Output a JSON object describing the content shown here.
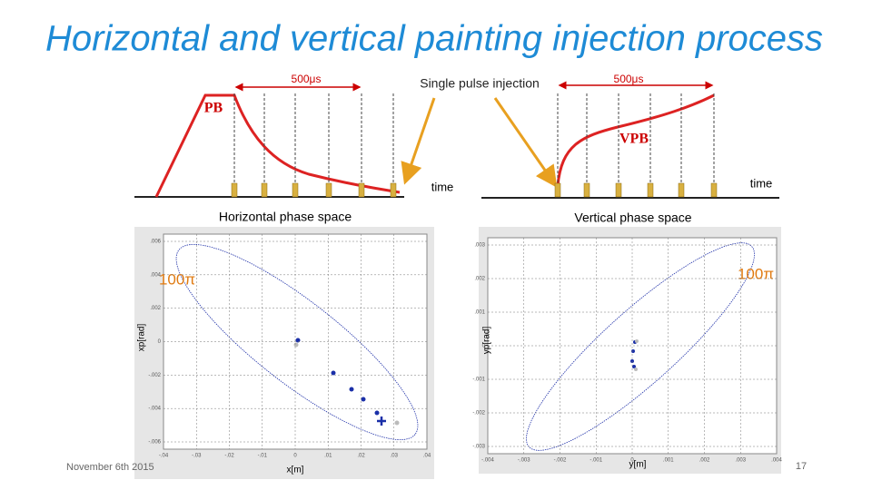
{
  "header": {
    "title": "Horizontal and vertical painting injection process"
  },
  "timing": {
    "left_interval": "500μs",
    "center_label": "Single pulse injection",
    "right_interval": "500μs",
    "left_curve": "PB",
    "right_curve": "VPB",
    "left_axis": "time",
    "right_axis": "time"
  },
  "horizontal": {
    "title": "Horizontal phase space",
    "emittance": "100π",
    "ylabel": "xp[rad]",
    "xlabel": "x[m]",
    "yticks": [
      ".006",
      ".004",
      ".002",
      "0",
      "-.002",
      "-.004",
      "-.006"
    ],
    "xticks": [
      "-.04",
      "-.03",
      "-.02",
      "-.01",
      "0",
      ".01",
      ".02",
      ".03",
      ".04"
    ]
  },
  "vertical": {
    "title": "Vertical phase space",
    "emittance": "100π",
    "ylabel": "yp[rad]",
    "xlabel": "y[m]",
    "yticks": [
      ".003",
      ".002",
      ".001",
      "0",
      "-.001",
      "-.002",
      "-.003"
    ],
    "xticks": [
      "-.004",
      "-.003",
      "-.002",
      "-.001",
      "0",
      ".001",
      ".002",
      ".003",
      ".004"
    ]
  },
  "footer": {
    "date": "November 6th 2015",
    "page": "17"
  }
}
